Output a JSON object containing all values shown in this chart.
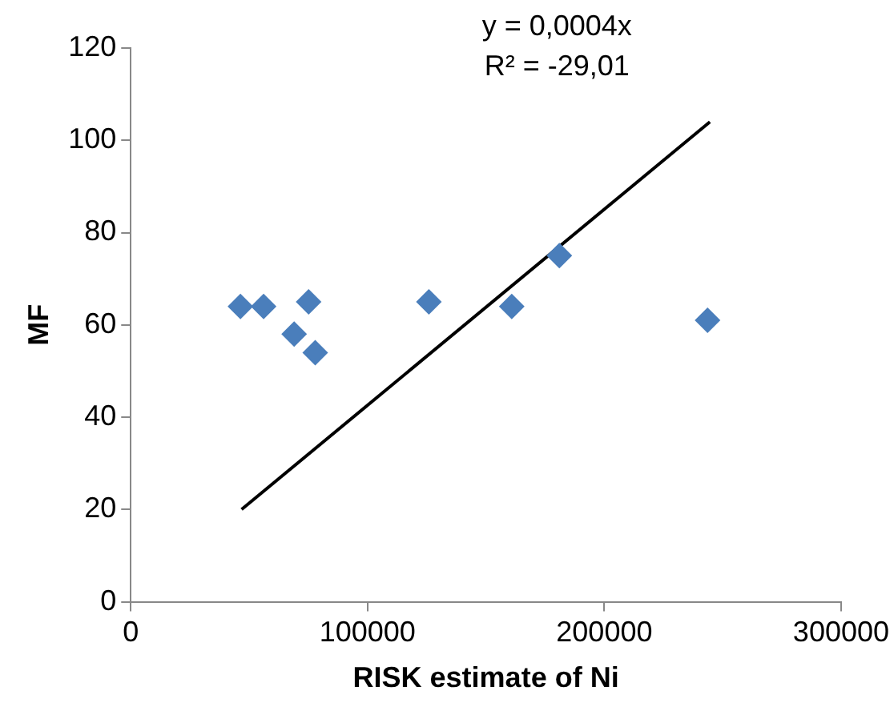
{
  "chart_data": {
    "type": "scatter",
    "xlabel": "RISK estimate of Ni",
    "ylabel": "MF",
    "xlim": [
      0,
      300000
    ],
    "xticks": [
      0,
      100000,
      200000,
      300000
    ],
    "ylim": [
      0,
      120
    ],
    "yticks": [
      0,
      20,
      40,
      60,
      80,
      100,
      120
    ],
    "grid": false,
    "legend": false,
    "marker": "diamond",
    "annotations": [
      "y = 0,0004x",
      "R² = -29,01"
    ],
    "series": [
      {
        "type": "scatter",
        "color": "#4a7ebb",
        "x": [
          46300,
          56100,
          69000,
          75100,
          77900,
          125900,
          160900,
          181000,
          243600
        ],
        "values": [
          64,
          64,
          58,
          65,
          54,
          65,
          64,
          75,
          61
        ]
      },
      {
        "type": "line",
        "color": "#000000",
        "marker": "none",
        "line_style": "solid",
        "x": [
          46800,
          244600
        ],
        "values": [
          20,
          104
        ]
      }
    ]
  }
}
